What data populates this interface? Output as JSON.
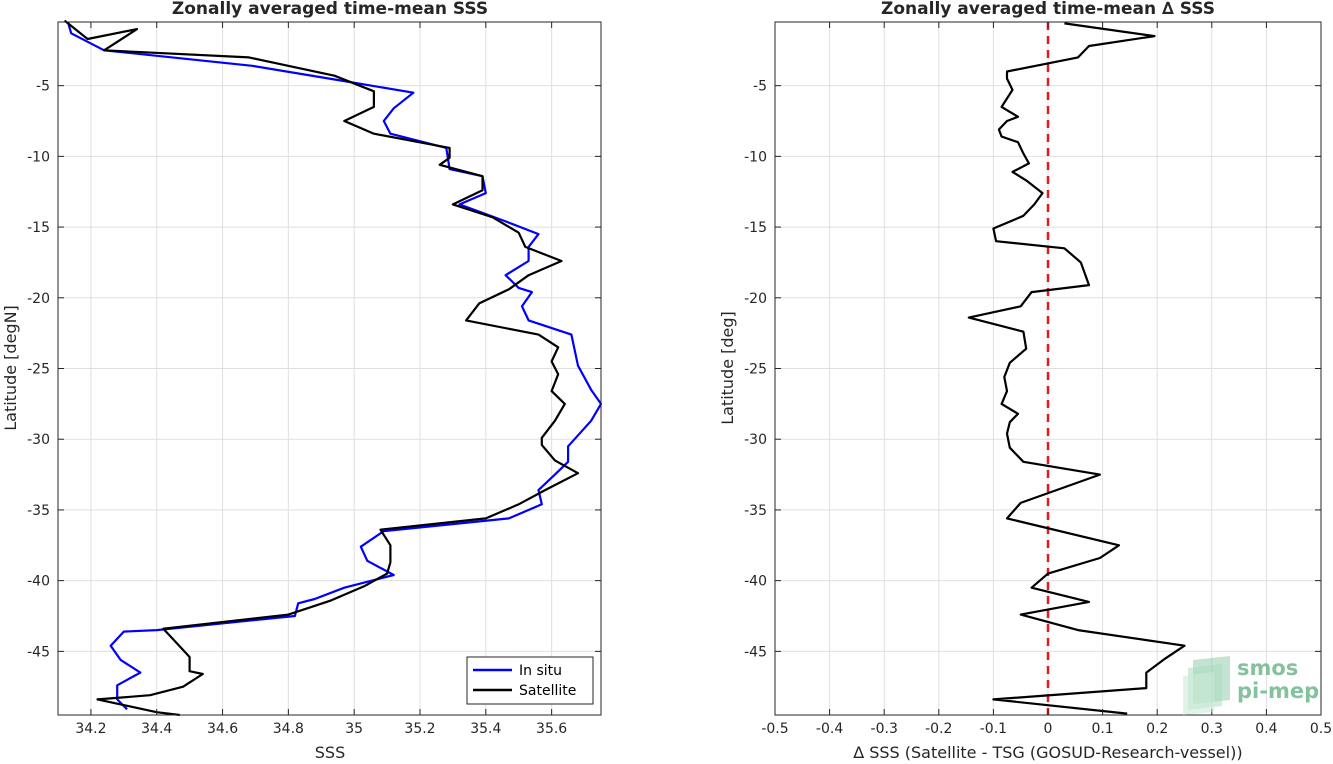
{
  "chart_data": [
    {
      "type": "line",
      "title": "Zonally averaged time-mean SSS",
      "xlabel": "SSS",
      "ylabel": "Latitude [degN]",
      "xlim": [
        34.1,
        35.75
      ],
      "ylim": [
        -49.5,
        -0.5
      ],
      "xticks": [
        34.2,
        34.4,
        34.6,
        34.8,
        35,
        35.2,
        35.4,
        35.6
      ],
      "xtick_labels": [
        "34.2",
        "34.4",
        "34.6",
        "34.8",
        "35",
        "35.2",
        "35.4",
        "35.6"
      ],
      "yticks": [
        -5,
        -10,
        -15,
        -20,
        -25,
        -30,
        -35,
        -40,
        -45
      ],
      "ytick_labels": [
        "-5",
        "-10",
        "-15",
        "-20",
        "-25",
        "-30",
        "-35",
        "-40",
        "-45"
      ],
      "grid": true,
      "legend_position": "bottom-right",
      "series": [
        {
          "name": "In situ",
          "color": "#0000ff",
          "points": [
            [
              34.13,
              -0.5
            ],
            [
              34.14,
              -1.3
            ],
            [
              34.24,
              -2.5
            ],
            [
              34.69,
              -3.6
            ],
            [
              34.95,
              -4.6
            ],
            [
              35.18,
              -5.5
            ],
            [
              35.12,
              -6.6
            ],
            [
              35.09,
              -7.5
            ],
            [
              35.11,
              -8.4
            ],
            [
              35.28,
              -9.4
            ],
            [
              35.29,
              -10.9
            ],
            [
              35.39,
              -11.4
            ],
            [
              35.4,
              -12.6
            ],
            [
              35.32,
              -13.4
            ],
            [
              35.46,
              -14.6
            ],
            [
              35.56,
              -15.5
            ],
            [
              35.53,
              -16.4
            ],
            [
              35.53,
              -17.4
            ],
            [
              35.46,
              -18.4
            ],
            [
              35.5,
              -19.3
            ],
            [
              35.54,
              -19.6
            ],
            [
              35.51,
              -20.6
            ],
            [
              35.53,
              -21.6
            ],
            [
              35.66,
              -22.6
            ],
            [
              35.68,
              -24.8
            ],
            [
              35.72,
              -26.5
            ],
            [
              35.75,
              -27.5
            ],
            [
              35.72,
              -28.7
            ],
            [
              35.65,
              -30.5
            ],
            [
              35.65,
              -31.6
            ],
            [
              35.61,
              -32.5
            ],
            [
              35.56,
              -33.6
            ],
            [
              35.57,
              -34.6
            ],
            [
              35.47,
              -35.6
            ],
            [
              35.09,
              -36.5
            ],
            [
              35.02,
              -37.6
            ],
            [
              35.04,
              -38.6
            ],
            [
              35.12,
              -39.6
            ],
            [
              34.97,
              -40.5
            ],
            [
              34.88,
              -41.3
            ],
            [
              34.83,
              -41.6
            ],
            [
              34.82,
              -42.5
            ],
            [
              34.4,
              -43.5
            ],
            [
              34.3,
              -43.6
            ],
            [
              34.26,
              -44.6
            ],
            [
              34.29,
              -45.6
            ],
            [
              34.35,
              -46.5
            ],
            [
              34.28,
              -47.4
            ],
            [
              34.28,
              -48.4
            ],
            [
              34.31,
              -49.1
            ]
          ]
        },
        {
          "name": "Satellite",
          "color": "#000000",
          "points": [
            [
              34.12,
              -0.4
            ],
            [
              34.19,
              -1.7
            ],
            [
              34.34,
              -1.0
            ],
            [
              34.24,
              -2.5
            ],
            [
              34.68,
              -3.0
            ],
            [
              34.94,
              -4.3
            ],
            [
              35.06,
              -5.4
            ],
            [
              35.06,
              -6.5
            ],
            [
              34.97,
              -7.5
            ],
            [
              35.06,
              -8.4
            ],
            [
              35.29,
              -9.4
            ],
            [
              35.29,
              -10.1
            ],
            [
              35.26,
              -10.6
            ],
            [
              35.39,
              -11.4
            ],
            [
              35.39,
              -12.4
            ],
            [
              35.3,
              -13.4
            ],
            [
              35.42,
              -14.3
            ],
            [
              35.5,
              -15.4
            ],
            [
              35.52,
              -16.4
            ],
            [
              35.63,
              -17.4
            ],
            [
              35.53,
              -18.4
            ],
            [
              35.47,
              -19.4
            ],
            [
              35.38,
              -20.4
            ],
            [
              35.34,
              -21.6
            ],
            [
              35.56,
              -22.6
            ],
            [
              35.62,
              -23.5
            ],
            [
              35.6,
              -24.5
            ],
            [
              35.62,
              -25.4
            ],
            [
              35.6,
              -26.6
            ],
            [
              35.64,
              -27.5
            ],
            [
              35.61,
              -28.7
            ],
            [
              35.57,
              -29.9
            ],
            [
              35.57,
              -30.4
            ],
            [
              35.61,
              -31.5
            ],
            [
              35.68,
              -32.4
            ],
            [
              35.58,
              -33.6
            ],
            [
              35.5,
              -34.6
            ],
            [
              35.4,
              -35.6
            ],
            [
              35.08,
              -36.4
            ],
            [
              35.11,
              -37.5
            ],
            [
              35.11,
              -38.7
            ],
            [
              35.1,
              -39.5
            ],
            [
              35.03,
              -40.4
            ],
            [
              34.93,
              -41.4
            ],
            [
              34.8,
              -42.4
            ],
            [
              34.42,
              -43.4
            ],
            [
              34.46,
              -44.4
            ],
            [
              34.5,
              -45.4
            ],
            [
              34.5,
              -46.4
            ],
            [
              34.54,
              -46.6
            ],
            [
              34.48,
              -47.5
            ],
            [
              34.38,
              -48.1
            ],
            [
              34.22,
              -48.4
            ],
            [
              34.4,
              -49.3
            ],
            [
              34.47,
              -49.5
            ]
          ]
        }
      ]
    },
    {
      "type": "line",
      "title": "Zonally averaged time-mean ∆ SSS",
      "xlabel": "∆ SSS (Satellite - TSG (GOSUD-Research-vessel))",
      "ylabel": "Latitude [deg]",
      "xlim": [
        -0.5,
        0.5
      ],
      "ylim": [
        -49.5,
        -0.5
      ],
      "xticks": [
        -0.5,
        -0.4,
        -0.3,
        -0.2,
        -0.1,
        0,
        0.1,
        0.2,
        0.3,
        0.4,
        0.5
      ],
      "xtick_labels": [
        "-0.5",
        "-0.4",
        "-0.3",
        "-0.2",
        "-0.1",
        "0",
        "0.1",
        "0.2",
        "0.3",
        "0.4",
        "0.5"
      ],
      "yticks": [
        -5,
        -10,
        -15,
        -20,
        -25,
        -30,
        -35,
        -40,
        -45
      ],
      "ytick_labels": [
        "-5",
        "-10",
        "-15",
        "-20",
        "-25",
        "-30",
        "-35",
        "-40",
        "-45"
      ],
      "grid": true,
      "reference_line": {
        "x": 0,
        "color": "#e41a1c",
        "style": "dashed"
      },
      "series": [
        {
          "color": "#000000",
          "points": [
            [
              0.03,
              -0.6
            ],
            [
              0.195,
              -1.5
            ],
            [
              0.075,
              -2.2
            ],
            [
              0.055,
              -3.0
            ],
            [
              -0.075,
              -4.0
            ],
            [
              -0.075,
              -4.5
            ],
            [
              -0.065,
              -5.3
            ],
            [
              -0.085,
              -6.5
            ],
            [
              -0.055,
              -7.2
            ],
            [
              -0.075,
              -7.5
            ],
            [
              -0.09,
              -8.1
            ],
            [
              -0.085,
              -8.6
            ],
            [
              -0.055,
              -9.0
            ],
            [
              -0.045,
              -9.8
            ],
            [
              -0.035,
              -10.5
            ],
            [
              -0.065,
              -11.1
            ],
            [
              -0.04,
              -11.7
            ],
            [
              -0.01,
              -12.6
            ],
            [
              -0.025,
              -13.4
            ],
            [
              -0.045,
              -14.2
            ],
            [
              -0.1,
              -15.1
            ],
            [
              -0.095,
              -16.0
            ],
            [
              0.03,
              -16.5
            ],
            [
              0.06,
              -17.5
            ],
            [
              0.075,
              -19.1
            ],
            [
              -0.03,
              -19.6
            ],
            [
              -0.05,
              -20.6
            ],
            [
              -0.145,
              -21.4
            ],
            [
              -0.045,
              -22.4
            ],
            [
              -0.04,
              -23.6
            ],
            [
              -0.07,
              -24.6
            ],
            [
              -0.08,
              -25.6
            ],
            [
              -0.075,
              -26.6
            ],
            [
              -0.085,
              -27.5
            ],
            [
              -0.055,
              -28.2
            ],
            [
              -0.07,
              -28.8
            ],
            [
              -0.075,
              -29.6
            ],
            [
              -0.07,
              -30.6
            ],
            [
              -0.045,
              -31.6
            ],
            [
              0.095,
              -32.5
            ],
            [
              -0.05,
              -34.5
            ],
            [
              -0.075,
              -35.6
            ],
            [
              0.13,
              -37.5
            ],
            [
              0.095,
              -38.4
            ],
            [
              0.0,
              -39.5
            ],
            [
              -0.03,
              -40.5
            ],
            [
              0.075,
              -41.5
            ],
            [
              -0.05,
              -42.4
            ],
            [
              0.055,
              -43.5
            ],
            [
              0.25,
              -44.6
            ],
            [
              0.215,
              -45.5
            ],
            [
              0.18,
              -46.5
            ],
            [
              0.18,
              -47.6
            ],
            [
              -0.1,
              -48.4
            ],
            [
              0.145,
              -49.4
            ]
          ]
        }
      ]
    }
  ],
  "legend": {
    "items": [
      "In situ",
      "Satellite"
    ]
  },
  "watermark": {
    "line1": "smos",
    "line2": "pi-mep"
  }
}
